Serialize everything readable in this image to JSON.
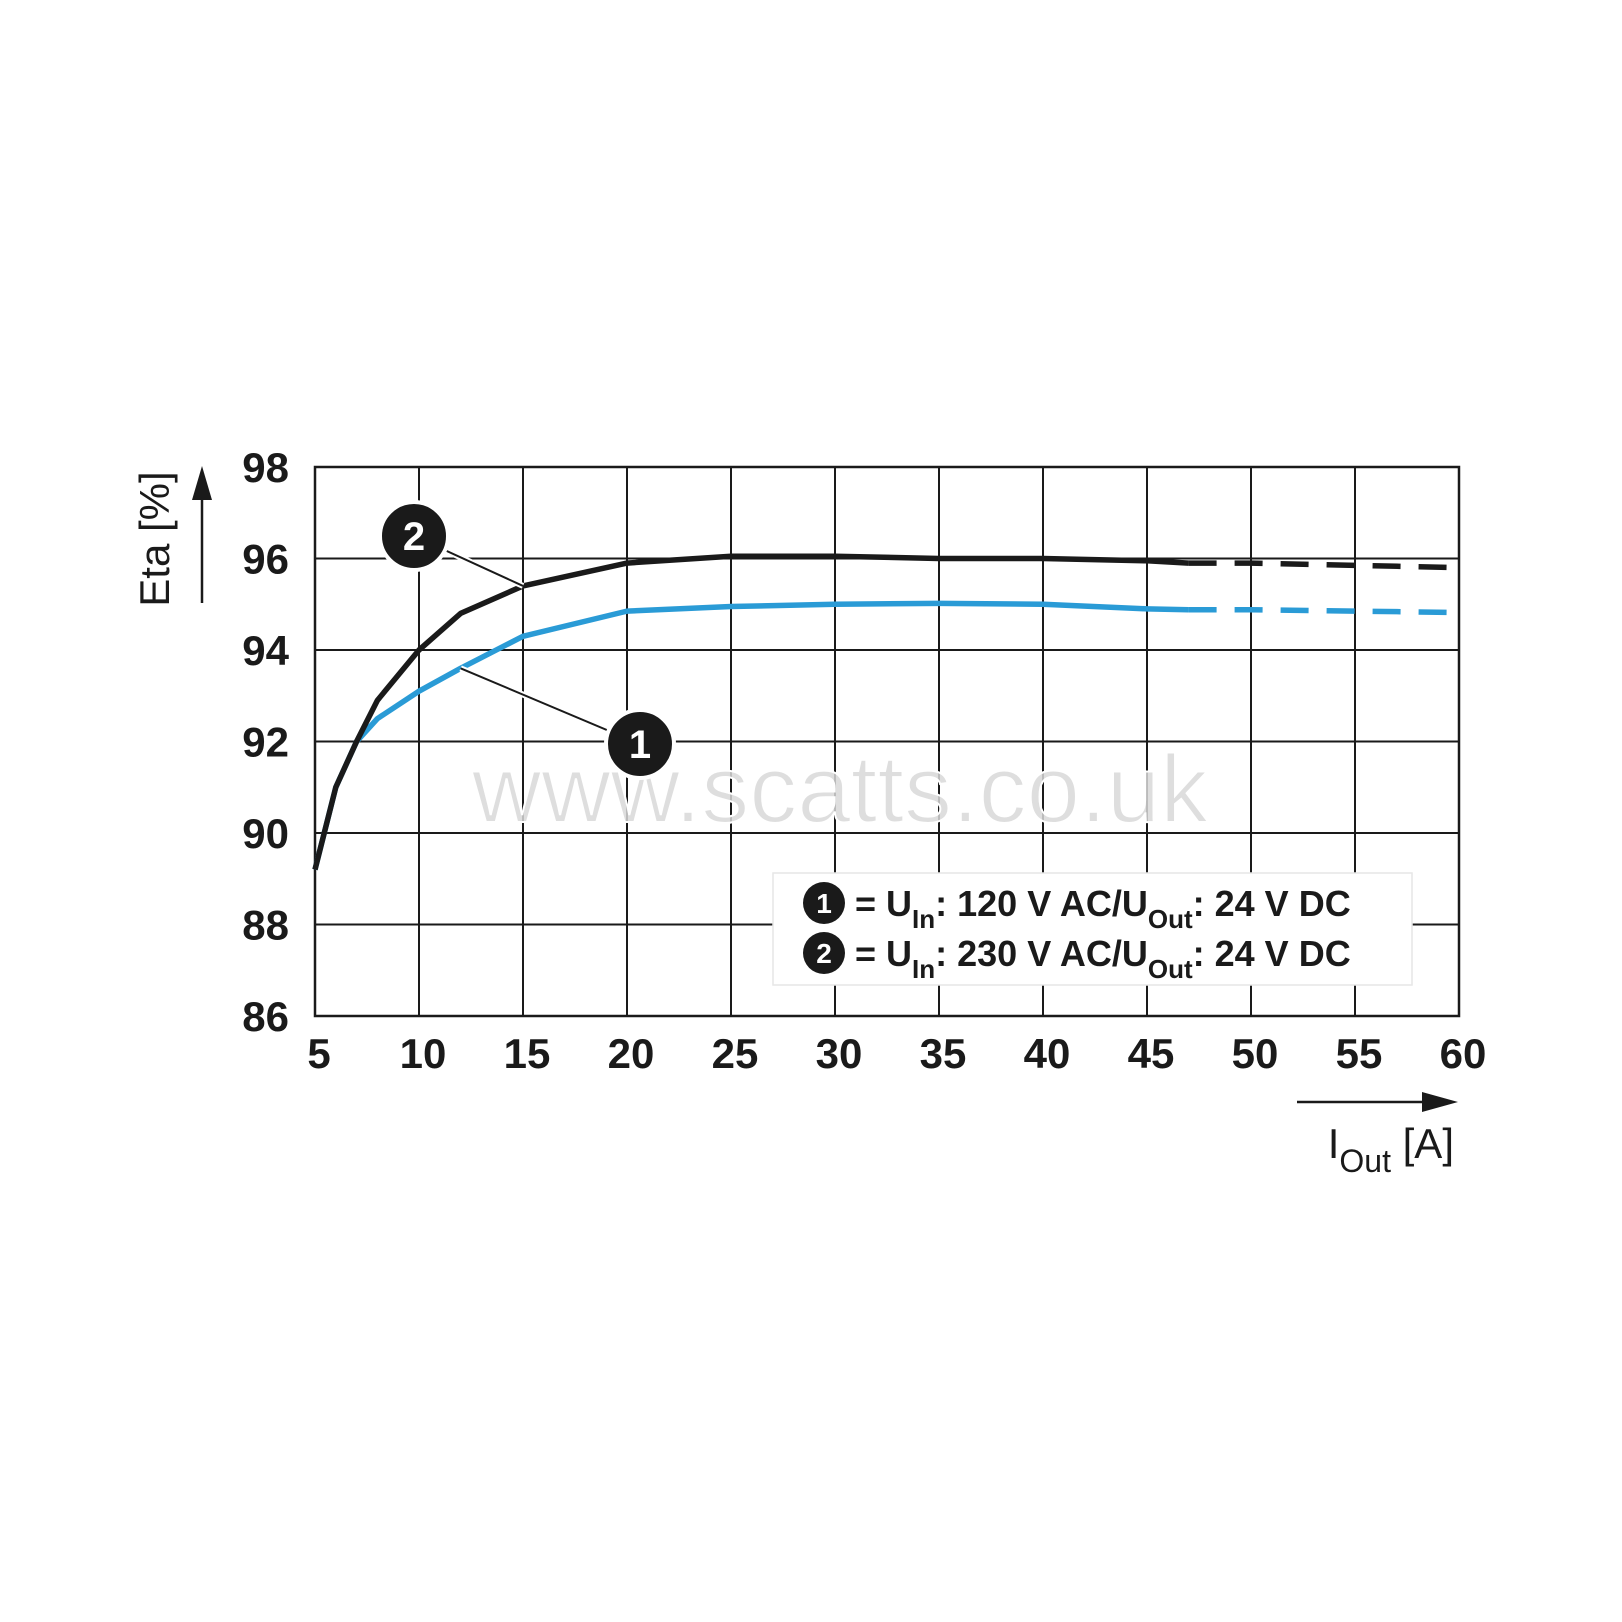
{
  "chart_data": {
    "type": "line",
    "y_label": "Eta [%]",
    "x_label_parts": [
      "I",
      "Out",
      " [A]"
    ],
    "watermark": "www.scatts.co.uk",
    "x": [
      5,
      6,
      7,
      8,
      10,
      12,
      15,
      20,
      25,
      30,
      35,
      40,
      45,
      47,
      50,
      55,
      60
    ],
    "dash_from_x": 47,
    "series": [
      {
        "marker": "1",
        "label_parts": [
          "= U",
          "In",
          ": 120 V AC/U",
          "Out",
          ": 24 V DC"
        ],
        "color": "#2a9bd6",
        "values": [
          89.2,
          91.0,
          92.0,
          92.5,
          93.1,
          93.6,
          94.3,
          94.85,
          94.95,
          95.0,
          95.02,
          95.0,
          94.9,
          94.88,
          94.88,
          94.85,
          94.82
        ]
      },
      {
        "marker": "2",
        "label_parts": [
          "= U",
          "In",
          ": 230 V AC/U",
          "Out",
          ": 24 V DC"
        ],
        "color": "#1a1a1a",
        "values": [
          89.2,
          91.0,
          92.0,
          92.9,
          94.0,
          94.8,
          95.4,
          95.9,
          96.05,
          96.05,
          96.0,
          96.0,
          95.95,
          95.9,
          95.9,
          95.85,
          95.8
        ]
      }
    ],
    "xlim": [
      5,
      60
    ],
    "xticks": [
      5,
      10,
      15,
      20,
      25,
      30,
      35,
      40,
      45,
      50,
      55,
      60
    ],
    "ylim": [
      86,
      98
    ],
    "yticks": [
      86,
      88,
      90,
      92,
      94,
      96,
      98
    ],
    "grid": true
  }
}
